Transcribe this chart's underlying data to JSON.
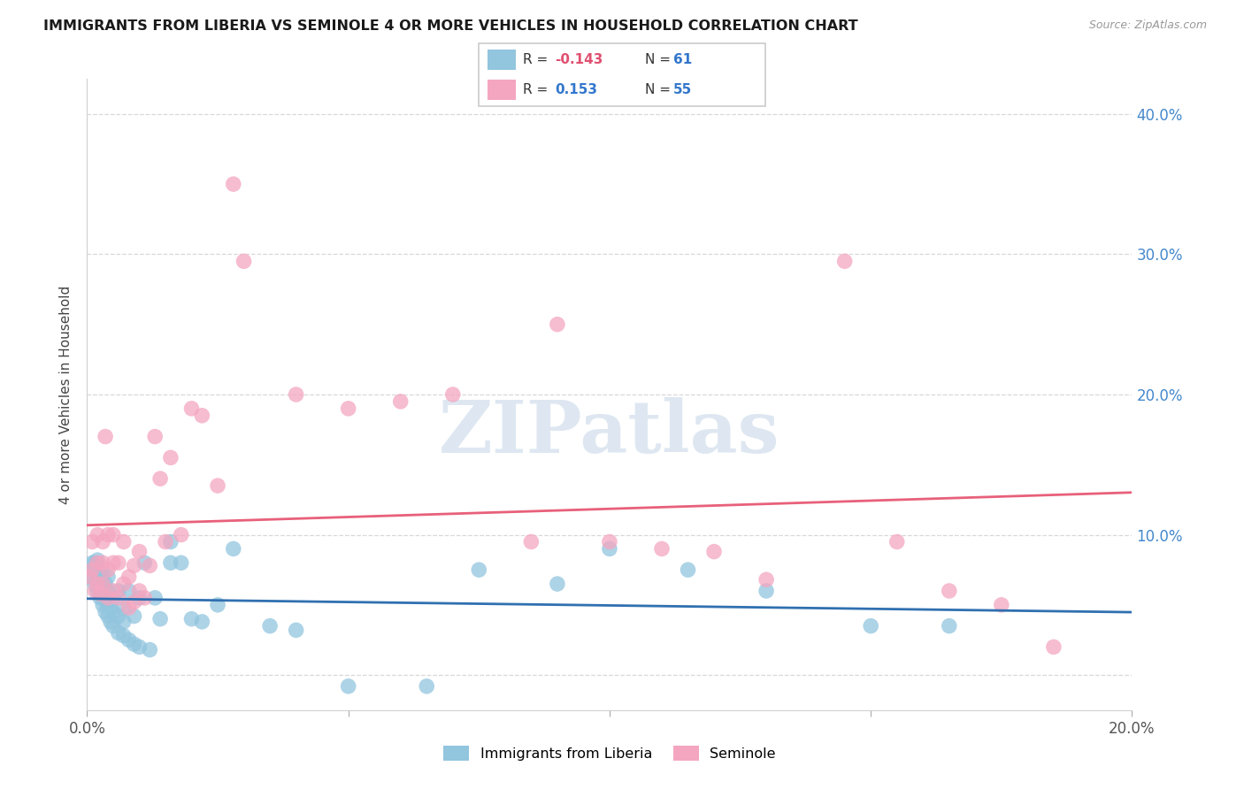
{
  "title": "IMMIGRANTS FROM LIBERIA VS SEMINOLE 4 OR MORE VEHICLES IN HOUSEHOLD CORRELATION CHART",
  "source": "Source: ZipAtlas.com",
  "ylabel": "4 or more Vehicles in Household",
  "xlim": [
    0.0,
    0.2
  ],
  "ylim": [
    -0.025,
    0.425
  ],
  "yticks": [
    0.0,
    0.1,
    0.2,
    0.3,
    0.4
  ],
  "xticks": [
    0.0,
    0.05,
    0.1,
    0.15,
    0.2
  ],
  "ytick_labels_right": [
    "",
    "10.0%",
    "20.0%",
    "30.0%",
    "40.0%"
  ],
  "xtick_labels": [
    "0.0%",
    "",
    "",
    "",
    "20.0%"
  ],
  "legend_blue_r": "-0.143",
  "legend_blue_n": "61",
  "legend_pink_r": "0.153",
  "legend_pink_n": "55",
  "blue_color": "#92c5de",
  "pink_color": "#f4a6c0",
  "blue_line_color": "#3070b0",
  "pink_line_color": "#e8607a",
  "blue_x": [
    0.0005,
    0.001,
    0.001,
    0.0015,
    0.0015,
    0.002,
    0.002,
    0.002,
    0.002,
    0.0025,
    0.0025,
    0.003,
    0.003,
    0.003,
    0.003,
    0.0035,
    0.0035,
    0.0035,
    0.004,
    0.004,
    0.004,
    0.004,
    0.0045,
    0.0045,
    0.005,
    0.005,
    0.005,
    0.006,
    0.006,
    0.006,
    0.007,
    0.007,
    0.007,
    0.008,
    0.008,
    0.009,
    0.009,
    0.01,
    0.01,
    0.011,
    0.012,
    0.013,
    0.014,
    0.016,
    0.016,
    0.018,
    0.02,
    0.022,
    0.025,
    0.028,
    0.035,
    0.04,
    0.05,
    0.065,
    0.075,
    0.09,
    0.1,
    0.115,
    0.13,
    0.15,
    0.165
  ],
  "blue_y": [
    0.07,
    0.075,
    0.08,
    0.065,
    0.08,
    0.06,
    0.068,
    0.075,
    0.082,
    0.055,
    0.07,
    0.05,
    0.058,
    0.065,
    0.072,
    0.045,
    0.055,
    0.065,
    0.042,
    0.05,
    0.06,
    0.07,
    0.038,
    0.048,
    0.035,
    0.045,
    0.055,
    0.03,
    0.042,
    0.06,
    0.028,
    0.038,
    0.048,
    0.025,
    0.06,
    0.022,
    0.042,
    0.02,
    0.055,
    0.08,
    0.018,
    0.055,
    0.04,
    0.08,
    0.095,
    0.08,
    0.04,
    0.038,
    0.05,
    0.09,
    0.035,
    0.032,
    -0.008,
    -0.008,
    0.075,
    0.065,
    0.09,
    0.075,
    0.06,
    0.035,
    0.035
  ],
  "pink_x": [
    0.0005,
    0.001,
    0.001,
    0.0015,
    0.002,
    0.002,
    0.002,
    0.0025,
    0.003,
    0.003,
    0.003,
    0.0035,
    0.004,
    0.004,
    0.004,
    0.005,
    0.005,
    0.005,
    0.006,
    0.006,
    0.007,
    0.007,
    0.008,
    0.008,
    0.009,
    0.009,
    0.01,
    0.01,
    0.011,
    0.012,
    0.013,
    0.014,
    0.015,
    0.016,
    0.018,
    0.02,
    0.022,
    0.025,
    0.028,
    0.03,
    0.04,
    0.05,
    0.06,
    0.07,
    0.085,
    0.09,
    0.1,
    0.11,
    0.12,
    0.13,
    0.145,
    0.155,
    0.165,
    0.175,
    0.185
  ],
  "pink_y": [
    0.07,
    0.075,
    0.095,
    0.06,
    0.065,
    0.08,
    0.1,
    0.058,
    0.065,
    0.08,
    0.095,
    0.17,
    0.055,
    0.075,
    0.1,
    0.06,
    0.08,
    0.1,
    0.055,
    0.08,
    0.065,
    0.095,
    0.048,
    0.07,
    0.052,
    0.078,
    0.06,
    0.088,
    0.055,
    0.078,
    0.17,
    0.14,
    0.095,
    0.155,
    0.1,
    0.19,
    0.185,
    0.135,
    0.35,
    0.295,
    0.2,
    0.19,
    0.195,
    0.2,
    0.095,
    0.25,
    0.095,
    0.09,
    0.088,
    0.068,
    0.295,
    0.095,
    0.06,
    0.05,
    0.02
  ],
  "watermark_text": "ZIPatlas",
  "watermark_color": "#c8d8e8",
  "grid_color": "#d8d8d8",
  "spine_color": "#d0d0d0"
}
